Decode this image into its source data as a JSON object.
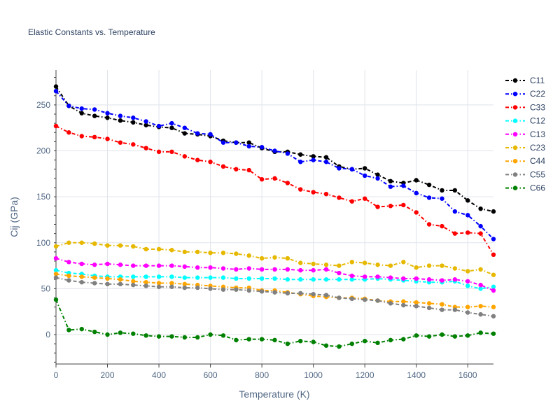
{
  "chart_data": {
    "type": "line",
    "title": "Elastic Constants vs. Temperature",
    "xlabel": "Temperature (K)",
    "ylabel": "Cij (GPa)",
    "xlim": [
      0,
      1700
    ],
    "ylim": [
      -32,
      288
    ],
    "xticks": [
      0,
      200,
      400,
      600,
      800,
      1000,
      1200,
      1400,
      1600
    ],
    "yticks": [
      0,
      50,
      100,
      150,
      200,
      250
    ],
    "x": [
      0,
      50,
      100,
      150,
      200,
      250,
      300,
      350,
      400,
      450,
      500,
      550,
      600,
      650,
      700,
      750,
      800,
      850,
      900,
      950,
      1000,
      1050,
      1100,
      1150,
      1200,
      1250,
      1300,
      1350,
      1400,
      1450,
      1500,
      1550,
      1600,
      1650,
      1700
    ],
    "series": [
      {
        "name": "C11",
        "color": "#000000",
        "values": [
          270,
          249,
          241,
          238,
          236,
          233,
          231,
          228,
          226,
          225,
          219,
          218,
          216,
          211,
          209,
          209,
          203,
          199,
          199,
          196,
          194,
          193,
          183,
          180,
          181,
          174,
          167,
          165,
          168,
          163,
          157,
          157,
          146,
          137,
          134
        ]
      },
      {
        "name": "C22",
        "color": "#0000ff",
        "values": [
          265,
          249,
          246,
          245,
          241,
          238,
          236,
          232,
          227,
          230,
          225,
          219,
          218,
          209,
          209,
          205,
          204,
          200,
          197,
          188,
          190,
          188,
          181,
          180,
          173,
          170,
          161,
          162,
          154,
          149,
          148,
          134,
          130,
          118,
          104
        ]
      },
      {
        "name": "C33",
        "color": "#ff0000",
        "values": [
          227,
          220,
          216,
          215,
          213,
          209,
          207,
          203,
          199,
          199,
          194,
          190,
          188,
          183,
          180,
          179,
          169,
          170,
          165,
          158,
          155,
          153,
          149,
          145,
          148,
          139,
          140,
          141,
          133,
          120,
          118,
          110,
          111,
          110,
          87
        ]
      },
      {
        "name": "C12",
        "color": "#00ffff",
        "values": [
          70,
          67,
          66,
          64,
          63,
          63,
          63,
          63,
          63,
          63,
          62,
          62,
          62,
          62,
          61,
          61,
          61,
          61,
          60,
          60,
          60,
          60,
          60,
          60,
          60,
          61,
          60,
          59,
          58,
          57,
          57,
          58,
          53,
          50,
          52
        ]
      },
      {
        "name": "C13",
        "color": "#ff00ff",
        "values": [
          83,
          79,
          77,
          76,
          77,
          76,
          75,
          75,
          75,
          75,
          74,
          73,
          73,
          72,
          71,
          72,
          71,
          71,
          71,
          70,
          70,
          71,
          67,
          64,
          63,
          63,
          62,
          61,
          61,
          60,
          59,
          60,
          58,
          54,
          48
        ]
      },
      {
        "name": "C23",
        "color": "#e6b800",
        "values": [
          96,
          100,
          100,
          99,
          97,
          97,
          96,
          93,
          93,
          92,
          90,
          90,
          89,
          89,
          88,
          86,
          83,
          84,
          83,
          78,
          77,
          76,
          75,
          79,
          78,
          76,
          75,
          79,
          73,
          75,
          75,
          72,
          69,
          71,
          65
        ]
      },
      {
        "name": "C44",
        "color": "#ffa500",
        "values": [
          66,
          64,
          63,
          62,
          61,
          60,
          58,
          57,
          56,
          56,
          55,
          54,
          53,
          52,
          51,
          51,
          48,
          48,
          46,
          44,
          42,
          41,
          40,
          40,
          39,
          37,
          36,
          36,
          35,
          34,
          33,
          30,
          30,
          31,
          30
        ]
      },
      {
        "name": "C55",
        "color": "#808080",
        "values": [
          62,
          59,
          57,
          56,
          55,
          55,
          54,
          53,
          52,
          52,
          51,
          51,
          50,
          49,
          49,
          48,
          47,
          46,
          45,
          45,
          44,
          43,
          40,
          39,
          38,
          37,
          34,
          32,
          31,
          29,
          27,
          27,
          24,
          22,
          20
        ]
      },
      {
        "name": "C66",
        "color": "#008000",
        "values": [
          38,
          5,
          6,
          3,
          0,
          2,
          1,
          -1,
          -2,
          -2,
          -3,
          -3,
          0,
          -1,
          -6,
          -5,
          -5,
          -6,
          -10,
          -7,
          -8,
          -12,
          -13,
          -10,
          -7,
          -9,
          -6,
          -5,
          -1,
          -2,
          0,
          -2,
          -1,
          2,
          1
        ]
      }
    ]
  }
}
